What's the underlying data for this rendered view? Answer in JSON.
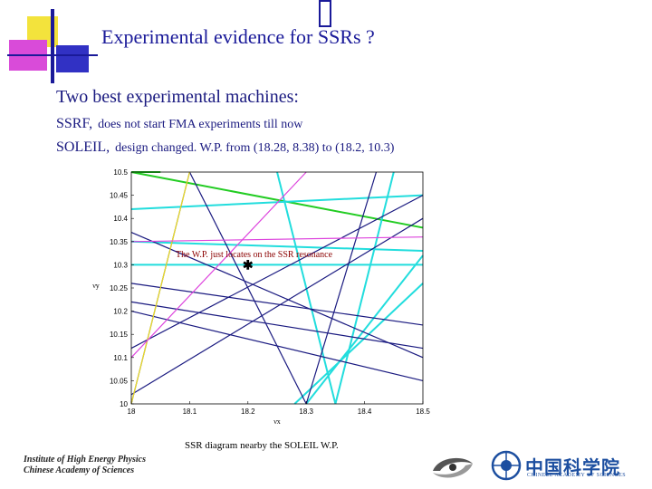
{
  "slide": {
    "title": "Experimental evidence for SSRs ?",
    "headline": "Two best experimental machines:",
    "rows": [
      {
        "key": "SSRF,",
        "desc": "does not start FMA experiments till now"
      },
      {
        "key": "SOLEIL,",
        "desc": "design changed. W.P. from (18.28, 8.38) to (18.2, 10.3)"
      }
    ],
    "caption": "SSR diagram nearby the SOLEIL W.P.",
    "footer_institute": [
      "Institute of High Energy Physics",
      "Chinese Academy of Sciences"
    ],
    "cas_name": "中国科学院",
    "cas_sub": "CHINESE ACADEMY OF SCIENCES"
  },
  "colors": {
    "title": "#1a1a99",
    "annotation": "#8b0000",
    "green": "#22cc22",
    "cyan": "#22dddd",
    "navy": "#1a1a80",
    "yellow": "#f0e020",
    "magenta": "#dd44dd"
  },
  "chart_data": {
    "type": "line",
    "xlabel": "νx",
    "ylabel": "νy",
    "xlim": [
      18,
      18.5
    ],
    "ylim": [
      10,
      10.5
    ],
    "x_ticks": [
      "18",
      "18.1",
      "18.2",
      "18.3",
      "18.4",
      "18.5"
    ],
    "y_ticks": [
      "10",
      "10.05",
      "10.1",
      "10.15",
      "10.2",
      "10.25",
      "10.3",
      "10.35",
      "10.4",
      "10.45",
      "10.5"
    ],
    "annotation": "The W.P. just locates on the SSR resonance",
    "working_point": {
      "x": 18.2,
      "y": 10.3
    },
    "series": [
      {
        "color": "green",
        "points": [
          [
            18.0,
            10.5
          ],
          [
            18.5,
            10.38
          ]
        ]
      },
      {
        "color": "green",
        "points": [
          [
            18.0,
            10.5
          ],
          [
            18.05,
            10.5
          ]
        ]
      },
      {
        "color": "cyan",
        "points": [
          [
            18.0,
            10.42
          ],
          [
            18.5,
            10.45
          ]
        ]
      },
      {
        "color": "cyan",
        "points": [
          [
            18.0,
            10.35
          ],
          [
            18.5,
            10.33
          ]
        ]
      },
      {
        "color": "cyan",
        "points": [
          [
            18.0,
            10.3
          ],
          [
            18.5,
            10.3
          ]
        ]
      },
      {
        "color": "cyan",
        "points": [
          [
            18.25,
            10.5
          ],
          [
            18.35,
            10.0
          ]
        ]
      },
      {
        "color": "cyan",
        "points": [
          [
            18.35,
            10.0
          ],
          [
            18.45,
            10.5
          ]
        ]
      },
      {
        "color": "cyan",
        "points": [
          [
            18.28,
            10.0
          ],
          [
            18.5,
            10.26
          ]
        ]
      },
      {
        "color": "cyan",
        "points": [
          [
            18.3,
            10.0
          ],
          [
            18.5,
            10.32
          ]
        ]
      },
      {
        "color": "navy",
        "points": [
          [
            18.0,
            10.0
          ],
          [
            18.1,
            10.5
          ]
        ]
      },
      {
        "color": "navy",
        "points": [
          [
            18.1,
            10.5
          ],
          [
            18.3,
            10.0
          ]
        ]
      },
      {
        "color": "navy",
        "points": [
          [
            18.0,
            10.37
          ],
          [
            18.5,
            10.1
          ]
        ]
      },
      {
        "color": "navy",
        "points": [
          [
            18.0,
            10.12
          ],
          [
            18.5,
            10.45
          ]
        ]
      },
      {
        "color": "navy",
        "points": [
          [
            18.0,
            10.26
          ],
          [
            18.5,
            10.17
          ]
        ]
      },
      {
        "color": "navy",
        "points": [
          [
            18.0,
            10.22
          ],
          [
            18.5,
            10.12
          ]
        ]
      },
      {
        "color": "navy",
        "points": [
          [
            18.0,
            10.02
          ],
          [
            18.5,
            10.4
          ]
        ]
      },
      {
        "color": "navy",
        "points": [
          [
            18.3,
            10.0
          ],
          [
            18.42,
            10.5
          ]
        ]
      },
      {
        "color": "navy",
        "points": [
          [
            18.0,
            10.2
          ],
          [
            18.5,
            10.05
          ]
        ]
      },
      {
        "color": "yellow",
        "points": [
          [
            18.0,
            10.0
          ],
          [
            18.1,
            10.5
          ]
        ]
      },
      {
        "color": "magenta",
        "points": [
          [
            18.0,
            10.1
          ],
          [
            18.3,
            10.5
          ]
        ]
      },
      {
        "color": "magenta",
        "points": [
          [
            18.0,
            10.35
          ],
          [
            18.5,
            10.36
          ]
        ]
      }
    ]
  }
}
